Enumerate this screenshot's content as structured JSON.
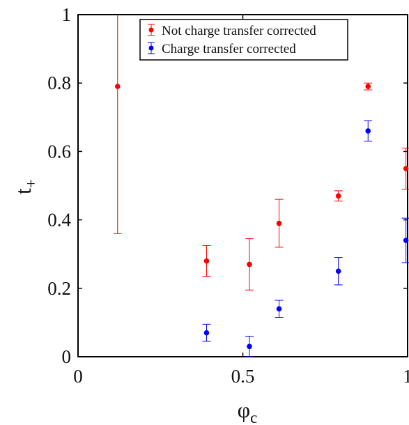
{
  "chart_data": {
    "type": "scatter",
    "xlabel": "φ",
    "xlabel_sub": "c",
    "ylabel": "t",
    "ylabel_sub": "+",
    "xlim": [
      0,
      1
    ],
    "ylim": [
      0,
      1
    ],
    "xticks": [
      {
        "value": 0,
        "label": "0"
      },
      {
        "value": 0.5,
        "label": "0.5"
      },
      {
        "value": 1,
        "label": "1"
      }
    ],
    "yticks": [
      {
        "value": 0,
        "label": "0"
      },
      {
        "value": 0.2,
        "label": "0.2"
      },
      {
        "value": 0.4,
        "label": "0.4"
      },
      {
        "value": 0.6,
        "label": "0.6"
      },
      {
        "value": 0.8,
        "label": "0.8"
      },
      {
        "value": 1,
        "label": "1"
      }
    ],
    "grid": false,
    "legend_position": "top-center",
    "series": [
      {
        "name": "Not charge transfer corrected",
        "color": "#ff0000",
        "points": [
          {
            "x": 0.12,
            "y": 0.79,
            "lo": 0.36,
            "hi": 1.22
          },
          {
            "x": 0.39,
            "y": 0.28,
            "lo": 0.235,
            "hi": 0.325
          },
          {
            "x": 0.52,
            "y": 0.27,
            "lo": 0.195,
            "hi": 0.345
          },
          {
            "x": 0.61,
            "y": 0.39,
            "lo": 0.32,
            "hi": 0.46
          },
          {
            "x": 0.79,
            "y": 0.47,
            "lo": 0.455,
            "hi": 0.485
          },
          {
            "x": 0.88,
            "y": 0.79,
            "lo": 0.78,
            "hi": 0.8
          },
          {
            "x": 0.995,
            "y": 0.55,
            "lo": 0.49,
            "hi": 0.61
          }
        ]
      },
      {
        "name": "Charge transfer corrected",
        "color": "#0000ff",
        "points": [
          {
            "x": 0.39,
            "y": 0.07,
            "lo": 0.045,
            "hi": 0.095
          },
          {
            "x": 0.52,
            "y": 0.03,
            "lo": 0.0,
            "hi": 0.06
          },
          {
            "x": 0.61,
            "y": 0.14,
            "lo": 0.115,
            "hi": 0.165
          },
          {
            "x": 0.79,
            "y": 0.25,
            "lo": 0.21,
            "hi": 0.29
          },
          {
            "x": 0.88,
            "y": 0.66,
            "lo": 0.63,
            "hi": 0.69
          },
          {
            "x": 0.995,
            "y": 0.34,
            "lo": 0.275,
            "hi": 0.405
          }
        ]
      }
    ]
  }
}
